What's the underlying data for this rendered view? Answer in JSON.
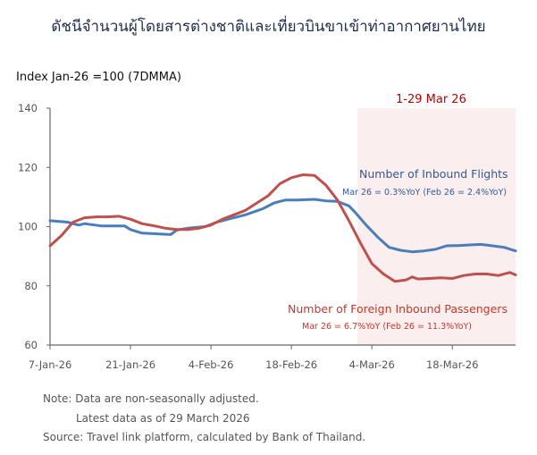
{
  "title": "ดัชนีจำนวนผู้โดยสารต่างชาติและเที่ยวบินขาเข้าท่าอากาศยานไทย",
  "chart_data": {
    "type": "line",
    "title": "ดัชนีจำนวนผู้โดยสารต่างชาติและเที่ยวบินขาเข้าท่าอากาศยานไทย",
    "ylabel": "Index Jan-26 =100  (7DMMA)",
    "ylim": [
      60,
      140
    ],
    "yticks": [
      "60",
      "80",
      "100",
      "120",
      "140"
    ],
    "xlim": [
      "7-Jan-26",
      "29-Mar-26"
    ],
    "xticks": [
      "7-Jan-26",
      "21-Jan-26",
      "4-Feb-26",
      "18-Feb-26",
      "4-Mar-26",
      "18-Mar-26"
    ],
    "grid": false,
    "highlight": {
      "label": "1-29 Mar 26",
      "from": "1-Mar-26",
      "to": "29-Mar-26",
      "color": "#fbeeee"
    },
    "series": [
      {
        "name": "Number of Inbound Flights",
        "annotation": "Mar 26 = 0.3%YoY (Feb 26 = 2.4%YoY)",
        "color": "#4a7ebb",
        "x": [
          "7-Jan-26",
          "10-Jan-26",
          "12-Jan-26",
          "13-Jan-26",
          "16-Jan-26",
          "20-Jan-26",
          "21-Jan-26",
          "23-Jan-26",
          "26-Jan-26",
          "28-Jan-26",
          "29-Jan-26",
          "31-Jan-26",
          "3-Feb-26",
          "5-Feb-26",
          "7-Feb-26",
          "10-Feb-26",
          "13-Feb-26",
          "15-Feb-26",
          "17-Feb-26",
          "19-Feb-26",
          "22-Feb-26",
          "24-Feb-26",
          "26-Feb-26",
          "28-Feb-26",
          "1-Mar-26",
          "3-Mar-26",
          "5-Mar-26",
          "7-Mar-26",
          "9-Mar-26",
          "11-Mar-26",
          "13-Mar-26",
          "15-Mar-26",
          "17-Mar-26",
          "19-Mar-26",
          "21-Mar-26",
          "23-Mar-26",
          "25-Mar-26",
          "27-Mar-26",
          "29-Mar-26"
        ],
        "values": [
          102,
          101.5,
          100.5,
          101,
          100.2,
          100.2,
          99,
          97.8,
          97.5,
          97.3,
          98.8,
          99.5,
          100,
          101.5,
          102.5,
          104,
          106,
          108,
          109,
          109,
          109.2,
          108.7,
          108.5,
          107,
          105,
          100.5,
          96.5,
          93,
          92,
          91.5,
          91.8,
          92.3,
          93.5,
          93.6,
          93.8,
          94,
          93.5,
          93,
          91.8
        ]
      },
      {
        "name": "Number of Foreign Inbound Passengers",
        "annotation": "Mar 26 = 6.7%YoY (Feb 26 = 11.3%YoY)",
        "color": "#c0504d",
        "x": [
          "7-Jan-26",
          "9-Jan-26",
          "11-Jan-26",
          "13-Jan-26",
          "15-Jan-26",
          "17-Jan-26",
          "19-Jan-26",
          "21-Jan-26",
          "23-Jan-26",
          "25-Jan-26",
          "27-Jan-26",
          "29-Jan-26",
          "31-Jan-26",
          "2-Feb-26",
          "4-Feb-26",
          "6-Feb-26",
          "8-Feb-26",
          "10-Feb-26",
          "12-Feb-26",
          "14-Feb-26",
          "16-Feb-26",
          "18-Feb-26",
          "20-Feb-26",
          "22-Feb-26",
          "24-Feb-26",
          "26-Feb-26",
          "28-Feb-26",
          "2-Mar-26",
          "4-Mar-26",
          "6-Mar-26",
          "8-Mar-26",
          "10-Mar-26",
          "11-Mar-26",
          "12-Mar-26",
          "14-Mar-26",
          "16-Mar-26",
          "18-Mar-26",
          "20-Mar-26",
          "22-Mar-26",
          "24-Mar-26",
          "26-Mar-26",
          "28-Mar-26",
          "29-Mar-26"
        ],
        "values": [
          93.5,
          97,
          101.5,
          103,
          103.3,
          103.3,
          103.5,
          102.5,
          101,
          100.3,
          99.5,
          99,
          99,
          99.5,
          100.5,
          102.5,
          104,
          105.5,
          108,
          110.5,
          114.5,
          116.5,
          117.5,
          117.3,
          114,
          109,
          102,
          94.5,
          87.5,
          84,
          81.5,
          82,
          83,
          82.3,
          82.5,
          82.7,
          82.5,
          83.5,
          84,
          84,
          83.5,
          84.5,
          83.7
        ]
      }
    ]
  },
  "notes": [
    "Note: Data are non-seasonally adjusted.",
    "Latest data as of 29 March 2026",
    "Source: Travel link platform, calculated by Bank of Thailand."
  ]
}
